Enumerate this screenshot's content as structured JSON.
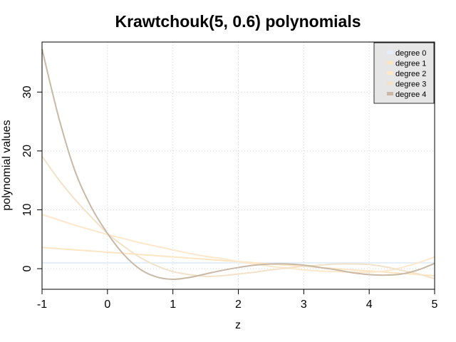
{
  "chart_data": {
    "type": "line",
    "title": "Krawtchouk(5, 0.6) polynomials",
    "xlabel": "z",
    "ylabel": "polynomial values",
    "xlim": [
      -1,
      5
    ],
    "ylim": [
      -3.5,
      38.5
    ],
    "xticks": [
      -1,
      0,
      1,
      2,
      3,
      4,
      5
    ],
    "yticks": [
      0,
      10,
      20,
      30
    ],
    "grid": true,
    "legend_position": "top-right",
    "x": [
      -1,
      -0.75,
      -0.5,
      -0.25,
      0,
      0.25,
      0.5,
      0.75,
      1,
      1.25,
      1.5,
      1.75,
      2,
      2.25,
      2.5,
      2.75,
      3,
      3.25,
      3.5,
      3.75,
      4,
      4.25,
      4.5,
      4.75,
      5
    ],
    "series": [
      {
        "name": "degree 0",
        "color": "#e3eef9",
        "values": [
          1,
          1,
          1,
          1,
          1,
          1,
          1,
          1,
          1,
          1,
          1,
          1,
          1,
          1,
          1,
          1,
          1,
          1,
          1,
          1,
          1,
          1,
          1,
          1,
          1
        ]
      },
      {
        "name": "degree 1",
        "color": "#fde5c2",
        "values": [
          3.6,
          3.4,
          3.2,
          3.0,
          2.8,
          2.6,
          2.4,
          2.2,
          2.0,
          1.8,
          1.6,
          1.4,
          1.2,
          1.0,
          0.8,
          0.6,
          0.4,
          0.2,
          0,
          -0.2,
          -0.4,
          -0.6,
          -0.8,
          -1.0,
          -1.2
        ]
      },
      {
        "name": "degree 2",
        "color": "#fde8cc",
        "values": [
          9.2,
          8.3,
          7.4,
          6.6,
          5.8,
          5.1,
          4.4,
          3.8,
          3.2,
          2.6,
          2.1,
          1.7,
          1.2,
          0.8,
          0.4,
          0.1,
          -0.2,
          -0.4,
          -0.5,
          -0.6,
          -0.6,
          -0.4,
          0.2,
          1.0,
          2.0
        ]
      },
      {
        "name": "degree 3",
        "color": "#f2e2c8",
        "values": [
          19.1,
          15.2,
          11.8,
          8.8,
          6.0,
          3.8,
          1.9,
          0.5,
          -0.5,
          -1.0,
          -1.3,
          -1.2,
          -0.9,
          -0.6,
          -0.2,
          0.1,
          0.4,
          0.6,
          0.8,
          0.8,
          0.7,
          0.3,
          -0.3,
          -0.9,
          -1.7
        ]
      },
      {
        "name": "degree 4",
        "color": "#c9b8a5",
        "values": [
          37.3,
          25.9,
          16.7,
          10.5,
          6.0,
          2.4,
          -0.1,
          -1.4,
          -1.8,
          -1.5,
          -0.9,
          -0.3,
          0.2,
          0.6,
          0.8,
          0.8,
          0.6,
          0.2,
          -0.2,
          -0.7,
          -1.0,
          -1.1,
          -0.9,
          -0.2,
          0.9
        ]
      }
    ]
  }
}
